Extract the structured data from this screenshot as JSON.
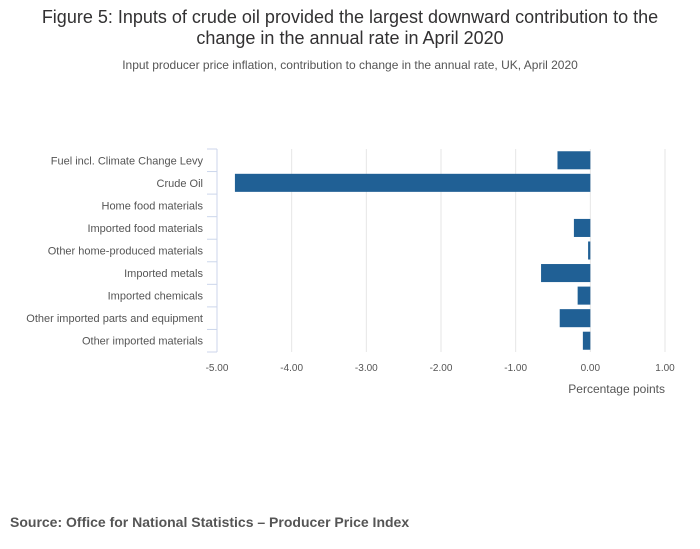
{
  "title": "Figure 5: Inputs of crude oil provided the largest downward contribution to the change in the annual rate in April 2020",
  "subtitle": "Input producer price inflation, contribution to change in the annual rate, UK, April 2020",
  "source": "Source: Office for National Statistics – Producer Price Index",
  "colors": {
    "bar": "#206095",
    "grid": "#e6e6e6",
    "axis": "#ccd6eb"
  },
  "chart_data": {
    "type": "bar",
    "orientation": "horizontal",
    "categories": [
      "Fuel incl. Climate Change Levy",
      "Crude Oil",
      "Home food materials",
      "Imported food materials",
      "Other home-produced materials",
      "Imported metals",
      "Imported chemicals",
      "Other imported parts and equipment",
      "Other imported materials"
    ],
    "values": [
      -0.44,
      -4.76,
      0.0,
      -0.22,
      -0.03,
      -0.66,
      -0.17,
      -0.41,
      -0.1
    ],
    "xlabel": "Percentage points",
    "xlim": [
      -5,
      1
    ],
    "xticks": [
      -5,
      -4,
      -3,
      -2,
      -1,
      0,
      1
    ],
    "xtick_labels": [
      "-5.00",
      "-4.00",
      "-3.00",
      "-2.00",
      "-1.00",
      "0.00",
      "1.00"
    ],
    "grid": true
  }
}
